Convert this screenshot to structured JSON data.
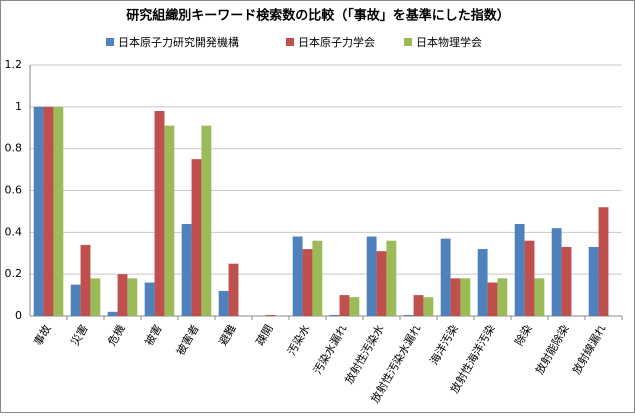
{
  "chart_data": {
    "type": "bar",
    "title": "研究組織別キーワード検索数の比較（「事故」を基準にした指数）",
    "categories": [
      "事故",
      "災害",
      "危機",
      "被害",
      "被害者",
      "避難",
      "疎開",
      "汚染水",
      "汚染水漏れ",
      "放射性汚染水",
      "放射性汚染水漏れ",
      "海洋汚染",
      "放射性海洋汚染",
      "除染",
      "放射能除染",
      "放射線漏れ"
    ],
    "series": [
      {
        "name": "日本原子力研究開発機構",
        "color": "#4f81bd",
        "values": [
          1,
          0.15,
          0.02,
          0.16,
          0.44,
          0.12,
          0,
          0.38,
          0.005,
          0.38,
          0.005,
          0.37,
          0.32,
          0.44,
          0.42,
          0.33
        ]
      },
      {
        "name": "日本原子力学会",
        "color": "#c0504d",
        "values": [
          1,
          0.34,
          0.2,
          0.98,
          0.75,
          0.25,
          0.005,
          0.32,
          0.1,
          0.31,
          0.1,
          0.18,
          0.16,
          0.36,
          0.33,
          0.52
        ]
      },
      {
        "name": "日本物理学会",
        "color": "#9bbb59",
        "values": [
          1,
          0.18,
          0.18,
          0.91,
          0.91,
          0,
          0,
          0.36,
          0.09,
          0.36,
          0.09,
          0.18,
          0.18,
          0.18,
          0,
          0
        ]
      }
    ],
    "ylim": [
      0,
      1.2
    ],
    "yticks": [
      0,
      0.2,
      0.4,
      0.6,
      0.8,
      1,
      1.2
    ],
    "grid": true,
    "legend": "top"
  }
}
